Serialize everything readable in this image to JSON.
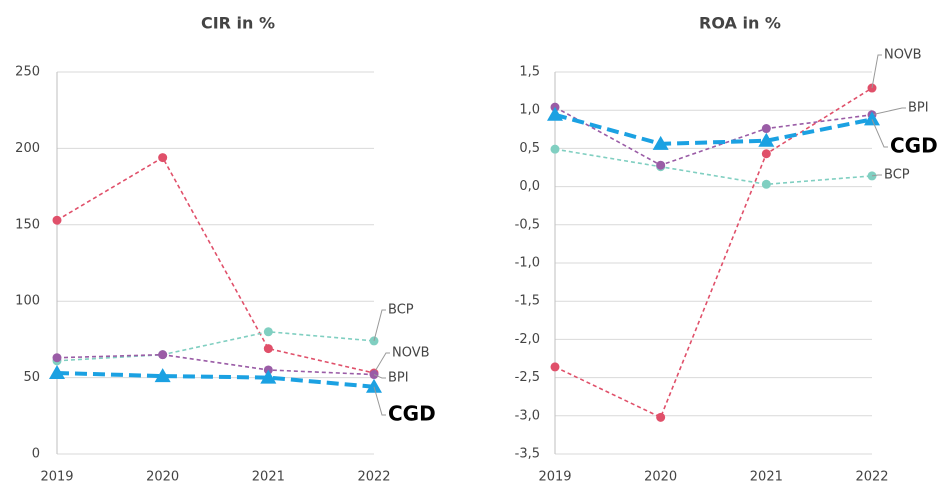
{
  "chart_data": [
    {
      "type": "line",
      "title": "CIR in %",
      "x": [
        "2019",
        "2020",
        "2021",
        "2022"
      ],
      "ylim": [
        0,
        250
      ],
      "yticks": [
        0,
        50,
        100,
        150,
        200,
        250
      ],
      "grid": true,
      "series": [
        {
          "name": "NOVB",
          "color": "#e0506a",
          "values": [
            153,
            194,
            69,
            53
          ]
        },
        {
          "name": "BCP",
          "color": "#80cfc1",
          "values": [
            61,
            65,
            80,
            74
          ]
        },
        {
          "name": "BPI",
          "color": "#9a5ca6",
          "values": [
            63,
            65,
            55,
            52
          ]
        },
        {
          "name": "CGD",
          "color": "#1ba1e2",
          "values": [
            53,
            51,
            50,
            44
          ]
        }
      ]
    },
    {
      "type": "line",
      "title": "ROA in %",
      "x": [
        "2019",
        "2020",
        "2021",
        "2022"
      ],
      "ylim": [
        -3.5,
        1.5
      ],
      "yticks": [
        {
          "value": -3.5,
          "label": "-3,5"
        },
        {
          "value": -3,
          "label": "-3,0"
        },
        {
          "value": -2.5,
          "label": "-2,5"
        },
        {
          "value": -2,
          "label": "-2,0"
        },
        {
          "value": -1.5,
          "label": "-1,5"
        },
        {
          "value": -1,
          "label": "-1,0"
        },
        {
          "value": -0.5,
          "label": "-0,5"
        },
        {
          "value": 0,
          "label": "0,0"
        },
        {
          "value": 0.5,
          "label": "0,5"
        },
        {
          "value": 1,
          "label": "1,0"
        },
        {
          "value": 1.5,
          "label": "1,5"
        }
      ],
      "grid": true,
      "series": [
        {
          "name": "NOVB",
          "color": "#e0506a",
          "values": [
            -2.36,
            -3.02,
            0.43,
            1.29
          ]
        },
        {
          "name": "BCP",
          "color": "#80cfc1",
          "values": [
            0.49,
            0.26,
            0.03,
            0.14
          ]
        },
        {
          "name": "BPI",
          "color": "#9a5ca6",
          "values": [
            1.04,
            0.28,
            0.76,
            0.94
          ]
        },
        {
          "name": "CGD",
          "color": "#1ba1e2",
          "values": [
            0.94,
            0.56,
            0.6,
            0.88
          ]
        }
      ]
    }
  ]
}
